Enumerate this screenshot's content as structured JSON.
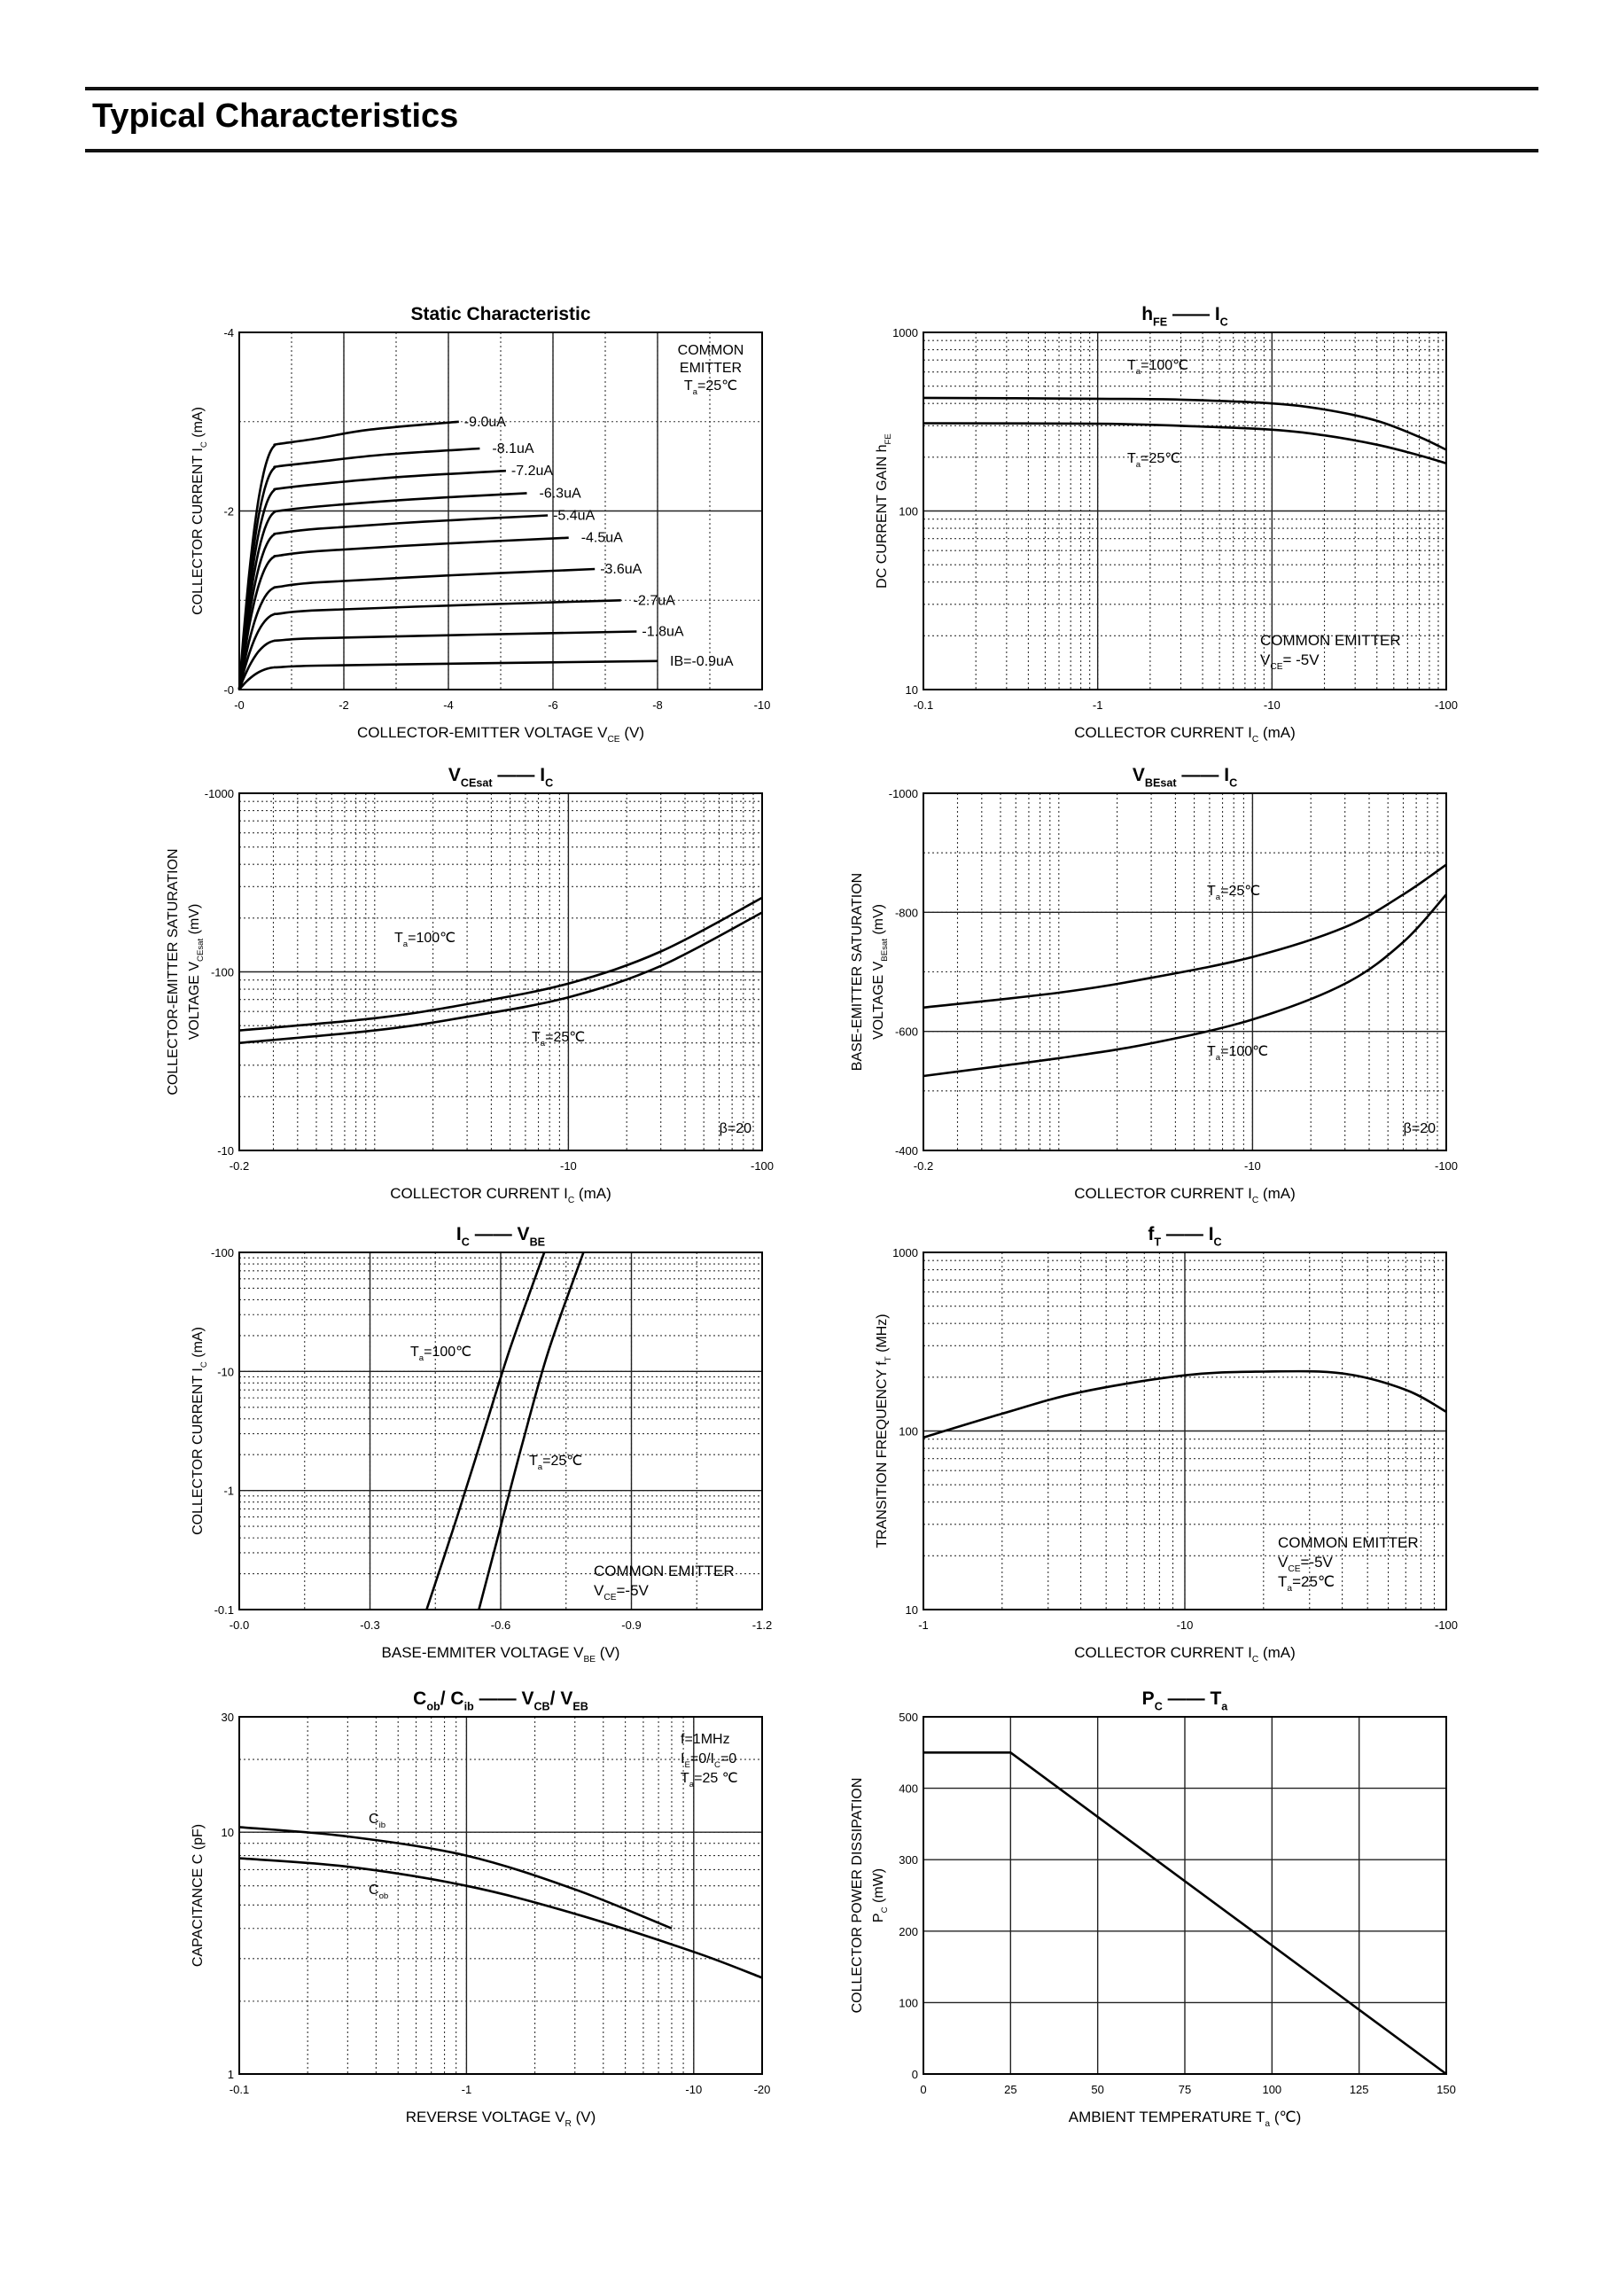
{
  "page": {
    "title": "Typical Characteristics"
  },
  "chart_data": [
    {
      "id": "static",
      "type": "line",
      "title": "Static Characteristic",
      "xlabel": "COLLECTOR-EMITTER VOLTAGE",
      "xsym": "V",
      "xsub": "CE",
      "xunit": "(V)",
      "ylabel": "COLLECTOR CURRENT",
      "ysym": "I",
      "ysub": "C",
      "yunit": "(mA)",
      "xscale": "linear",
      "yscale": "linear",
      "xlim": [
        0,
        -10
      ],
      "ylim": [
        0,
        -4
      ],
      "xticks": [
        0,
        -2,
        -4,
        -6,
        -8,
        -10
      ],
      "xticklabels": [
        "-0",
        "-2",
        "-4",
        "-6",
        "-8",
        "-10"
      ],
      "yticks": [
        0,
        -2,
        -4
      ],
      "yticklabels": [
        "-0",
        "-2",
        "-4"
      ],
      "annotation": [
        "COMMON",
        "EMITTER"
      ],
      "annotation_temp": {
        "sym": "T",
        "sub": "a",
        "text": "=25℃"
      },
      "series": [
        {
          "name": "-9.0uA",
          "sat": -2.75,
          "end_v": -4.2,
          "end_i": -3.0
        },
        {
          "name": "-8.1uA",
          "sat": -2.5,
          "end_v": -4.6,
          "end_i": -2.7
        },
        {
          "name": "-7.2uA",
          "sat": -2.25,
          "end_v": -5.1,
          "end_i": -2.45
        },
        {
          "name": "-6.3uA",
          "sat": -2.0,
          "end_v": -5.5,
          "end_i": -2.2
        },
        {
          "name": "-5.4uA",
          "sat": -1.75,
          "end_v": -5.9,
          "end_i": -1.95
        },
        {
          "name": "-4.5uA",
          "sat": -1.5,
          "end_v": -6.3,
          "end_i": -1.7
        },
        {
          "name": "-3.6uA",
          "sat": -1.15,
          "end_v": -6.8,
          "end_i": -1.35
        },
        {
          "name": "-2.7uA",
          "sat": -0.85,
          "end_v": -7.3,
          "end_i": -1.0
        },
        {
          "name": "-1.8uA",
          "sat": -0.55,
          "end_v": -7.6,
          "end_i": -0.65
        },
        {
          "name": "IB=-0.9uA",
          "sat": -0.25,
          "end_v": -8.0,
          "end_i": -0.32
        }
      ]
    },
    {
      "id": "hfe",
      "type": "line",
      "title_parts": [
        {
          "sym": "h",
          "sub": "FE"
        },
        {
          "sym": "I",
          "sub": "C"
        }
      ],
      "xlabel": "COLLECTOR CURRENT",
      "xsym": "I",
      "xsub": "C",
      "xunit": "(mA)",
      "ylabel": "DC CURRENT GAIN",
      "ysym": "h",
      "ysub": "FE",
      "yunit": "",
      "xscale": "log",
      "yscale": "log",
      "xlim": [
        0.1,
        100
      ],
      "ylim": [
        10,
        1000
      ],
      "xticks": [
        0.1,
        1,
        10,
        100
      ],
      "xticklabels": [
        "-0.1",
        "-1",
        "-10",
        "-100"
      ],
      "yticks": [
        10,
        100,
        1000
      ],
      "yticklabels": [
        "10",
        "100",
        "1000"
      ],
      "annotation": [
        "COMMON EMITTER"
      ],
      "annotation_v": {
        "sym": "V",
        "sub": "CE",
        "text": "= -5V"
      },
      "series": [
        {
          "name": "Ta=100℃",
          "label_sym": "T",
          "label_sub": "a",
          "label_text": "=100℃",
          "x": [
            0.1,
            1,
            3,
            10,
            20,
            40,
            70,
            100
          ],
          "y": [
            430,
            425,
            420,
            400,
            370,
            320,
            260,
            220
          ]
        },
        {
          "name": "Ta=25℃",
          "label_sym": "T",
          "label_sub": "a",
          "label_text": "=25℃",
          "x": [
            0.1,
            1,
            3,
            10,
            20,
            40,
            70,
            100
          ],
          "y": [
            310,
            308,
            300,
            285,
            265,
            235,
            205,
            185
          ]
        }
      ]
    },
    {
      "id": "vcesat",
      "type": "line",
      "title_parts": [
        {
          "sym": "V",
          "sub": "CEsat"
        },
        {
          "sym": "I",
          "sub": "C"
        }
      ],
      "xlabel": "COLLECTOR CURRENT",
      "xsym": "I",
      "xsub": "C",
      "xunit": "(mA)",
      "ylabel": "COLLECTOR-EMITTER SATURATION",
      "ylabel2": "VOLTAGE",
      "ysym": "V",
      "ysub": "CEsat",
      "yunit": "(mV)",
      "xscale": "log",
      "yscale": "log",
      "xlim": [
        0.2,
        100
      ],
      "ylim": [
        10,
        1000
      ],
      "xticks": [
        0.2,
        10,
        100
      ],
      "xticklabels": [
        "-0.2",
        "-10",
        "-100"
      ],
      "yticks": [
        10,
        100,
        1000
      ],
      "yticklabels": [
        "-10",
        "-100",
        "-1000"
      ],
      "annotation": [
        "β=20"
      ],
      "series": [
        {
          "name": "Ta=100℃",
          "label_sym": "T",
          "label_sub": "a",
          "label_text": "=100℃",
          "x": [
            0.2,
            1,
            3,
            10,
            30,
            100
          ],
          "y": [
            47,
            55,
            66,
            86,
            130,
            260
          ]
        },
        {
          "name": "Ta=25℃",
          "label_sym": "T",
          "label_sub": "a",
          "label_text": "=25℃",
          "x": [
            0.2,
            1,
            3,
            10,
            30,
            100
          ],
          "y": [
            40,
            47,
            56,
            72,
            108,
            215
          ]
        }
      ]
    },
    {
      "id": "vbesat",
      "type": "line",
      "title_parts": [
        {
          "sym": "V",
          "sub": "BEsat"
        },
        {
          "sym": "I",
          "sub": "C"
        }
      ],
      "xlabel": "COLLECTOR CURRENT",
      "xsym": "I",
      "xsub": "C",
      "xunit": "(mA)",
      "ylabel": "BASE-EMITTER SATURATION",
      "ylabel2": "VOLTAGE",
      "ysym": "V",
      "ysub": "BEsat",
      "yunit": "(mV)",
      "xscale": "log",
      "yscale": "linear",
      "xlim": [
        0.2,
        100
      ],
      "ylim": [
        400,
        1000
      ],
      "xticks": [
        0.2,
        10,
        100
      ],
      "xticklabels": [
        "-0.2",
        "-10",
        "-100"
      ],
      "yticks": [
        400,
        600,
        800,
        1000
      ],
      "yticklabels": [
        "-400",
        "-600",
        "-800",
        "-1000"
      ],
      "annotation": [
        "β=20"
      ],
      "series": [
        {
          "name": "Ta=25℃",
          "label_sym": "T",
          "label_sub": "a",
          "label_text": "=25℃",
          "x": [
            0.2,
            1,
            3,
            10,
            30,
            60,
            100
          ],
          "y": [
            640,
            665,
            690,
            725,
            775,
            830,
            880
          ]
        },
        {
          "name": "Ta=100℃",
          "label_sym": "T",
          "label_sub": "a",
          "label_text": "=100℃",
          "x": [
            0.2,
            1,
            3,
            10,
            30,
            60,
            100
          ],
          "y": [
            525,
            555,
            580,
            620,
            680,
            750,
            830
          ]
        }
      ]
    },
    {
      "id": "icvbe",
      "type": "line",
      "title_parts": [
        {
          "sym": "I",
          "sub": "C"
        },
        {
          "sym": "V",
          "sub": "BE"
        }
      ],
      "xlabel": "BASE-EMMITER VOLTAGE",
      "xsym": "V",
      "xsub": "BE",
      "xunit": "(V)",
      "ylabel": "COLLECTOR CURRENT",
      "ysym": "I",
      "ysub": "C",
      "yunit": "(mA)",
      "xscale": "linear",
      "yscale": "log",
      "xlim": [
        0,
        -1.2
      ],
      "ylim": [
        0.1,
        100
      ],
      "xticks": [
        0,
        -0.3,
        -0.6,
        -0.9,
        -1.2
      ],
      "xticklabels": [
        "-0.0",
        "-0.3",
        "-0.6",
        "-0.9",
        "-1.2"
      ],
      "yticks": [
        0.1,
        1,
        10,
        100
      ],
      "yticklabels": [
        "-0.1",
        "-1",
        "-10",
        "-100"
      ],
      "annotation": [
        "COMMON EMITTER"
      ],
      "annotation_v": {
        "sym": "V",
        "sub": "CE",
        "text": "=-5V"
      },
      "series": [
        {
          "name": "Ta=100℃",
          "label_sym": "T",
          "label_sub": "a",
          "label_text": "=100℃",
          "x": [
            -0.43,
            -0.5,
            -0.56,
            -0.62,
            -0.7
          ],
          "y": [
            0.1,
            0.6,
            3,
            15,
            100
          ]
        },
        {
          "name": "Ta=25℃",
          "label_sym": "T",
          "label_sub": "a",
          "label_text": "=25℃",
          "x": [
            -0.55,
            -0.6,
            -0.65,
            -0.71,
            -0.79
          ],
          "y": [
            0.1,
            0.5,
            2.5,
            15,
            100
          ]
        }
      ]
    },
    {
      "id": "ft",
      "type": "line",
      "title_parts": [
        {
          "sym": "f",
          "sub": "T"
        },
        {
          "sym": "I",
          "sub": "C"
        }
      ],
      "xlabel": "COLLECTOR CURRENT",
      "xsym": "I",
      "xsub": "C",
      "xunit": "(mA)",
      "ylabel": "TRANSITION FREQUENCY",
      "ysym": "f",
      "ysub": "T",
      "yunit": "(MHz)",
      "xscale": "log",
      "yscale": "log",
      "xlim": [
        1,
        100
      ],
      "ylim": [
        10,
        1000
      ],
      "xticks": [
        1,
        10,
        100
      ],
      "xticklabels": [
        "-1",
        "-10",
        "-100"
      ],
      "yticks": [
        10,
        100,
        1000
      ],
      "yticklabels": [
        "10",
        "100",
        "1000"
      ],
      "annotation": [
        "COMMON EMITTER"
      ],
      "annotation_v": {
        "sym": "V",
        "sub": "CE",
        "text": "=-5V"
      },
      "annotation_temp": {
        "sym": "T",
        "sub": "a",
        "text": "=25℃"
      },
      "series": [
        {
          "name": "fT",
          "x": [
            1,
            2,
            4,
            10,
            20,
            40,
            70,
            100
          ],
          "y": [
            92,
            125,
            165,
            205,
            215,
            210,
            170,
            128
          ]
        }
      ]
    },
    {
      "id": "cap",
      "type": "line",
      "title_parts": [
        {
          "sym": "C",
          "sub": "ob"
        },
        {
          "sym": "/ C",
          "sub": "ib"
        },
        {
          "sym": "V",
          "sub": "CB"
        },
        {
          "sym": "/ V",
          "sub": "EB"
        }
      ],
      "xlabel": "REVERSE VOLTAGE",
      "xsym": "V",
      "xsub": "R",
      "xunit": "(V)",
      "ylabel": "CAPACITANCE",
      "ysym": "C",
      "ysub": "",
      "yunit": "(pF)",
      "xscale": "log",
      "yscale": "log",
      "xlim": [
        0.1,
        20
      ],
      "ylim": [
        1,
        30
      ],
      "xticks": [
        0.1,
        1,
        10,
        20
      ],
      "xticklabels": [
        "-0.1",
        "-1",
        "-10",
        "-20"
      ],
      "yticks": [
        1,
        10,
        30
      ],
      "yticklabels": [
        "1",
        "10",
        "30"
      ],
      "annotation": [
        "f=1MHz"
      ],
      "annotation_ie": {
        "sym1": "I",
        "sub1": "E",
        "mid": "=0/I",
        "sub2": "C",
        "tail": "=0"
      },
      "annotation_temp": {
        "sym": "T",
        "sub": "a",
        "text": "=25 ℃"
      },
      "series": [
        {
          "name": "Cib",
          "label_sym": "C",
          "label_sub": "ib",
          "x": [
            0.1,
            0.3,
            1,
            3,
            8
          ],
          "y": [
            10.5,
            9.6,
            8.0,
            5.8,
            4.0
          ]
        },
        {
          "name": "Cob",
          "label_sym": "C",
          "label_sub": "ob",
          "x": [
            0.1,
            0.3,
            1,
            3,
            10,
            20
          ],
          "y": [
            7.8,
            7.2,
            6.0,
            4.6,
            3.2,
            2.5
          ]
        }
      ]
    },
    {
      "id": "pc",
      "type": "line",
      "title_parts": [
        {
          "sym": "P",
          "sub": "C"
        },
        {
          "sym": "T",
          "sub": "a"
        }
      ],
      "xlabel": "AMBIENT TEMPERATURE",
      "xsym": "T",
      "xsub": "a",
      "xunit": "(℃)",
      "ylabel": "COLLECTOR POWER DISSIPATION",
      "ylabel2": "",
      "ysym": "P",
      "ysub": "C",
      "yunit": "(mW)",
      "xscale": "linear",
      "yscale": "linear",
      "xlim": [
        0,
        150
      ],
      "ylim": [
        0,
        500
      ],
      "xticks": [
        0,
        25,
        50,
        75,
        100,
        125,
        150
      ],
      "xticklabels": [
        "0",
        "25",
        "50",
        "75",
        "100",
        "125",
        "150"
      ],
      "yticks": [
        0,
        100,
        200,
        300,
        400,
        500
      ],
      "yticklabels": [
        "0",
        "100",
        "200",
        "300",
        "400",
        "500"
      ],
      "series": [
        {
          "name": "PC",
          "x": [
            0,
            25,
            150
          ],
          "y": [
            450,
            450,
            0
          ]
        }
      ]
    }
  ]
}
